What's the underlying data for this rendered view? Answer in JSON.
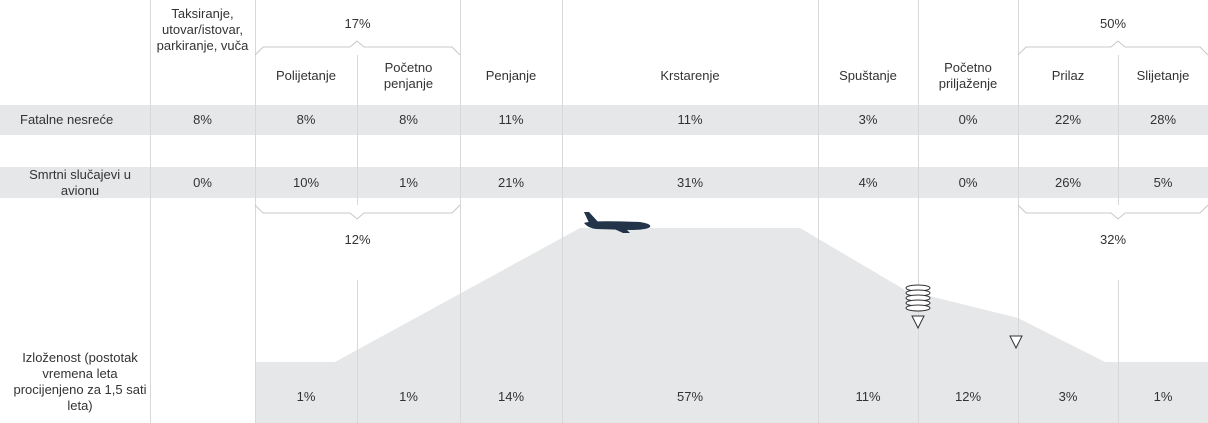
{
  "columns": [
    "Taksiranje, utovar/istovar, parkiranje, vuča",
    "Polijetanje",
    "Početno penjanje",
    "Penjanje",
    "Krstarenje",
    "Spuštanje",
    "Početno priljaženje",
    "Prilaz",
    "Slijetanje"
  ],
  "top_groups": [
    "17%",
    "50%"
  ],
  "bottom_groups": [
    "12%",
    "32%"
  ],
  "rows": [
    {
      "label": "Fatalne nesreće",
      "values": [
        "8%",
        "8%",
        "8%",
        "11%",
        "11%",
        "3%",
        "0%",
        "22%",
        "28%"
      ]
    },
    {
      "label": "Smrtni slučajevi u avionu",
      "values": [
        "0%",
        "10%",
        "1%",
        "21%",
        "31%",
        "4%",
        "0%",
        "26%",
        "5%"
      ]
    },
    {
      "label": "Izloženost (postotak vremena leta procijenjeno za 1,5 sati leta)",
      "values": [
        null,
        "1%",
        "1%",
        "14%",
        "57%",
        "11%",
        "12%",
        "3%",
        "1%"
      ]
    }
  ]
}
